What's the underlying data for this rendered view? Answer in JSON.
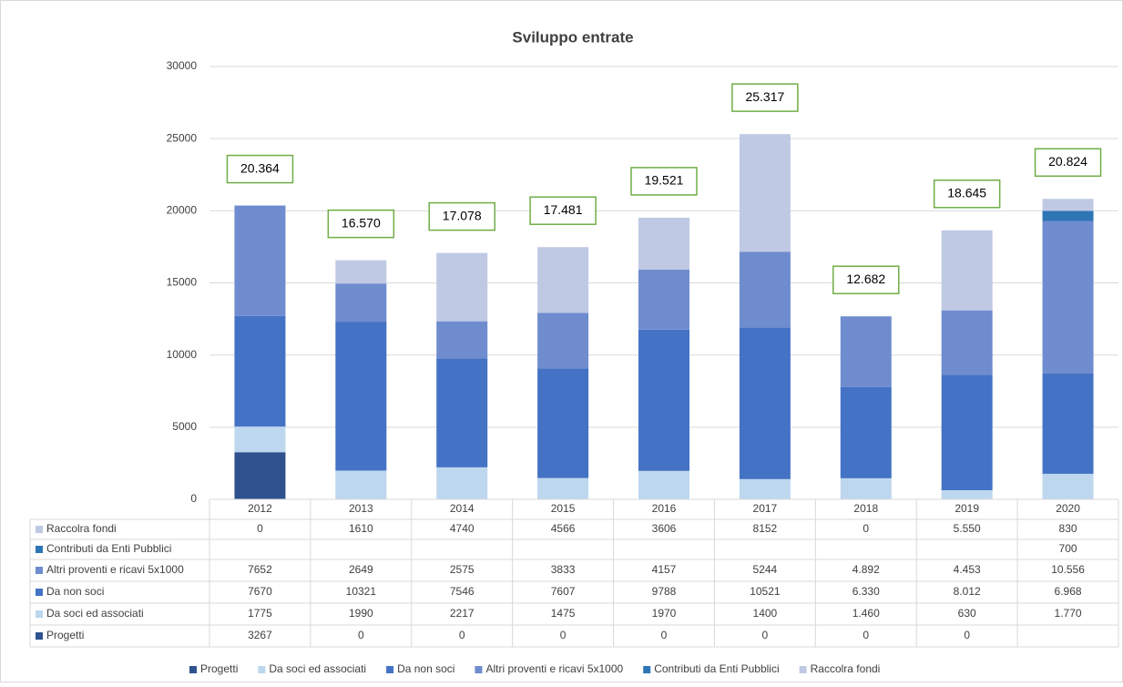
{
  "chart_data": {
    "type": "stacked_bar",
    "title": "Sviluppo entrate",
    "categories": [
      "2012",
      "2013",
      "2014",
      "2015",
      "2016",
      "2017",
      "2018",
      "2019",
      "2020"
    ],
    "series": [
      {
        "name": "Progetti",
        "color": "#2f528f",
        "values": [
          3267,
          0,
          0,
          0,
          0,
          0,
          0,
          0,
          null
        ],
        "value_labels": [
          "3267",
          "0",
          "0",
          "0",
          "0",
          "0",
          "0",
          "0",
          null
        ]
      },
      {
        "name": "Da soci ed associati",
        "color": "#bdd7ee",
        "values": [
          1775,
          1990,
          2217,
          1475,
          1970,
          1400,
          1460,
          630,
          1770
        ],
        "value_labels": [
          "1775",
          "1990",
          "2217",
          "1475",
          "1970",
          "1400",
          "1.460",
          "630",
          "1.770"
        ]
      },
      {
        "name": "Da non soci",
        "color": "#4472c4",
        "values": [
          7670,
          10321,
          7546,
          7607,
          9788,
          10521,
          6330,
          8012,
          6968
        ],
        "value_labels": [
          "7670",
          "10321",
          "7546",
          "7607",
          "9788",
          "10521",
          "6.330",
          "8.012",
          "6.968"
        ]
      },
      {
        "name": "Altri proventi e ricavi 5x1000",
        "color": "#6f8ccf",
        "values": [
          7652,
          2649,
          2575,
          3833,
          4157,
          5244,
          4892,
          4453,
          10556
        ],
        "value_labels": [
          "7652",
          "2649",
          "2575",
          "3833",
          "4157",
          "5244",
          "4.892",
          "4.453",
          "10.556"
        ]
      },
      {
        "name": "Contributi da Enti Pubblici",
        "color": "#2e75b6",
        "values": [
          null,
          null,
          null,
          null,
          null,
          null,
          null,
          null,
          700
        ],
        "value_labels": [
          null,
          null,
          null,
          null,
          null,
          null,
          null,
          null,
          "700"
        ]
      },
      {
        "name": "Raccolra fondi",
        "color": "#c0c9e4",
        "values": [
          0,
          1610,
          4740,
          4566,
          3606,
          8152,
          0,
          5550,
          830
        ],
        "value_labels": [
          "0",
          "1610",
          "4740",
          "4566",
          "3606",
          "8152",
          "0",
          "5.550",
          "830"
        ]
      }
    ],
    "totals": {
      "values": [
        20364,
        16570,
        17078,
        17481,
        19521,
        25317,
        12682,
        18645,
        20824
      ],
      "value_labels": [
        "20.364",
        "16.570",
        "17.078",
        "17.481",
        "19.521",
        "25.317",
        "12.682",
        "18.645",
        "20.824"
      ]
    },
    "ylim": [
      0,
      30000
    ],
    "yticks": [
      0,
      5000,
      10000,
      15000,
      20000,
      25000,
      30000
    ],
    "grid": true,
    "legend": "bottom"
  }
}
